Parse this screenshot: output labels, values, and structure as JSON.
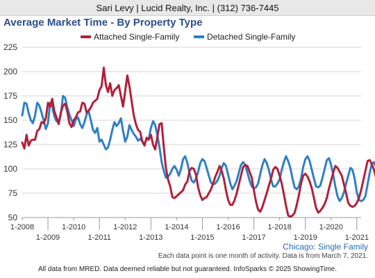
{
  "header": {
    "text": "Sari Levy | Lucid Realty, Inc. | (312) 736-7445"
  },
  "chart_data": {
    "type": "line",
    "title": "Average Market Time - By Property Type",
    "subtitle": "Chicago: Single Family",
    "xlabel": "",
    "ylabel": "",
    "ylim": [
      50,
      225
    ],
    "yticks": [
      50,
      75,
      100,
      125,
      150,
      175,
      200,
      225
    ],
    "xlim": [
      "2008-01",
      "2021-03"
    ],
    "xticks_upper": [
      "1-2008",
      "1-2010",
      "1-2012",
      "1-2014",
      "1-2016",
      "1-2018",
      "1-2020"
    ],
    "xticks_lower": [
      "1-2009",
      "1-2011",
      "1-2013",
      "1-2015",
      "1-2017",
      "1-2019",
      "1-2021"
    ],
    "grid": "horizontal",
    "legend_position": "top",
    "colors": {
      "attached": "#b11f3a",
      "detached": "#2f7fc4",
      "title": "#2c4e8a",
      "subtitle": "#2c6db0"
    },
    "series": [
      {
        "name": "Attached Single-Family",
        "start": "2008-01",
        "values": [
          127,
          121,
          135,
          124,
          129,
          130,
          130,
          139,
          141,
          148,
          147,
          152,
          168,
          164,
          172,
          159,
          153,
          146,
          158,
          165,
          167,
          159,
          147,
          143,
          150,
          153,
          158,
          159,
          168,
          167,
          158,
          160,
          163,
          168,
          170,
          172,
          181,
          185,
          204,
          186,
          179,
          188,
          175,
          181,
          183,
          186,
          175,
          164,
          180,
          196,
          185,
          170,
          155,
          146,
          140,
          138,
          128,
          124,
          132,
          130,
          135,
          125,
          120,
          133,
          146,
          147,
          123,
          101,
          89,
          82,
          71,
          70,
          72,
          74,
          76,
          78,
          84,
          87,
          98,
          101,
          100,
          94,
          81,
          73,
          68,
          70,
          71,
          75,
          79,
          85,
          92,
          97,
          103,
          98,
          90,
          78,
          68,
          63,
          63,
          68,
          75,
          84,
          93,
          102,
          104,
          103,
          97,
          91,
          78,
          66,
          58,
          56,
          61,
          68,
          75,
          83,
          90,
          99,
          102,
          100,
          93,
          85,
          74,
          62,
          52,
          51,
          52,
          55,
          63,
          73,
          85,
          93,
          95,
          92,
          87,
          80,
          70,
          60,
          55,
          57,
          60,
          64,
          70,
          80,
          88,
          96,
          103,
          101,
          97,
          93,
          84,
          75,
          65,
          62,
          61,
          62,
          65,
          70,
          78,
          88,
          98,
          108,
          109,
          105,
          99,
          91,
          80,
          70,
          63,
          60,
          62,
          68,
          75,
          84,
          94,
          106
        ]
      },
      {
        "name": "Detached Single-Family",
        "start": "2008-01",
        "values": [
          155,
          168,
          167,
          157,
          150,
          147,
          155,
          168,
          165,
          158,
          150,
          141,
          147,
          168,
          164,
          154,
          149,
          148,
          156,
          175,
          173,
          163,
          156,
          150,
          144,
          151,
          153,
          146,
          142,
          148,
          156,
          159,
          150,
          140,
          137,
          142,
          128,
          130,
          125,
          120,
          122,
          130,
          140,
          148,
          144,
          147,
          152,
          139,
          128,
          133,
          145,
          140,
          136,
          133,
          129,
          131,
          128,
          126,
          130,
          131,
          142,
          149,
          145,
          135,
          122,
          107,
          98,
          91,
          92,
          95,
          100,
          103,
          99,
          93,
          100,
          110,
          113,
          106,
          96,
          88,
          86,
          90,
          97,
          106,
          110,
          108,
          101,
          93,
          86,
          84,
          85,
          88,
          93,
          101,
          106,
          103,
          94,
          85,
          79,
          83,
          88,
          96,
          104,
          107,
          104,
          96,
          88,
          82,
          80,
          81,
          85,
          95,
          104,
          110,
          106,
          99,
          89,
          82,
          82,
          85,
          89,
          99,
          107,
          113,
          108,
          101,
          90,
          81,
          79,
          82,
          90,
          102,
          110,
          113,
          108,
          99,
          90,
          82,
          81,
          83,
          91,
          100,
          109,
          111,
          104,
          94,
          82,
          72,
          67,
          70,
          76,
          85,
          93,
          101,
          99,
          90,
          76,
          68,
          67,
          68,
          72,
          84,
          96,
          105,
          107,
          102,
          95,
          86,
          77,
          71,
          68,
          69,
          72,
          79,
          86,
          89
        ]
      }
    ]
  },
  "footer": {
    "note": "Each data point is one month of activity. Data is from March 7, 2021.",
    "disclaimer": "All data from MRED. Data deemed reliable but not guaranteed. InfoSparks © 2025 ShowingTime."
  }
}
